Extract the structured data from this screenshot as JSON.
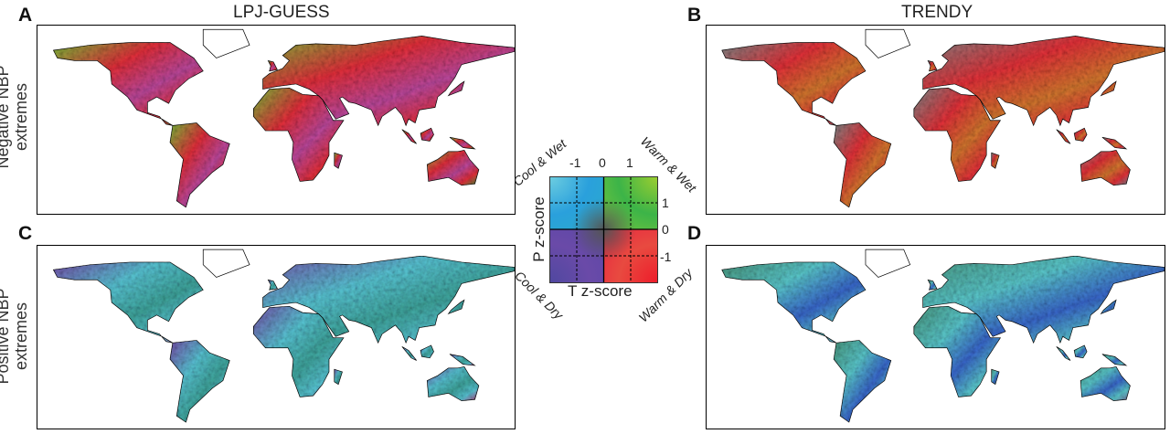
{
  "columns": {
    "left": "LPJ-GUESS",
    "right": "TRENDY"
  },
  "rows": {
    "top": [
      "Negative NBP",
      "extremes"
    ],
    "bottom": [
      "Positive NBP",
      "extremes"
    ]
  },
  "panels": [
    {
      "letter": "A",
      "model": "LPJ-GUESS",
      "extremes": "Negative NBP",
      "colors": [
        "#e8303c",
        "#7cc43a",
        "#c04aa0",
        "#3a9a3a"
      ]
    },
    {
      "letter": "B",
      "model": "TRENDY",
      "extremes": "Negative NBP",
      "colors": [
        "#e8323a",
        "#808a8a",
        "#d87a30",
        "#6a8a9a"
      ]
    },
    {
      "letter": "C",
      "model": "LPJ-GUESS",
      "extremes": "Positive NBP",
      "colors": [
        "#5ac8d8",
        "#7a50b0",
        "#40a8a0",
        "#c03a80"
      ]
    },
    {
      "letter": "D",
      "model": "TRENDY",
      "extremes": "Positive NBP",
      "colors": [
        "#5ccbd0",
        "#4a9a80",
        "#3a6ad0",
        "#7a6aa0"
      ]
    }
  ],
  "legend": {
    "x_axis": "T z-score",
    "y_axis": "P z-score",
    "x_ticks": [
      "-1",
      "0",
      "1"
    ],
    "y_ticks": [
      "1",
      "0",
      "-1"
    ],
    "corners": {
      "top_left": "Cool & Wet",
      "top_right": "Warm & Wet",
      "bottom_left": "Cool & Dry",
      "bottom_right": "Warm & Dry"
    }
  }
}
